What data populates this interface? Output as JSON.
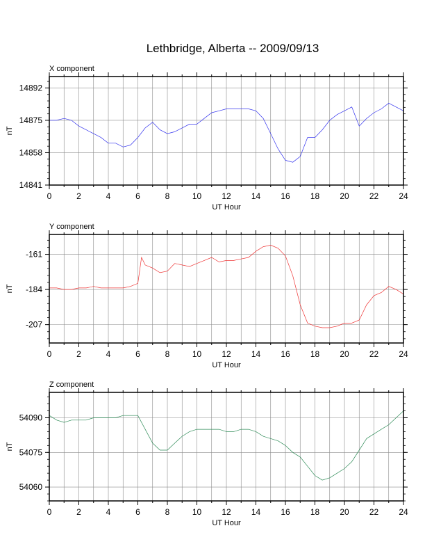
{
  "title": "Lethbridge, Alberta -- 2009/09/13",
  "chart_data": [
    {
      "type": "line",
      "title": "X component",
      "xlabel": "UT Hour",
      "ylabel": "nT",
      "xlim": [
        0,
        24
      ],
      "ylim": [
        14841,
        14898
      ],
      "xticks": [
        0,
        2,
        4,
        6,
        8,
        10,
        12,
        14,
        16,
        18,
        20,
        22,
        24
      ],
      "yticks": [
        14841,
        14858,
        14875,
        14892
      ],
      "grid": true,
      "color": "#3333ee",
      "x": [
        0,
        0.5,
        1,
        1.5,
        2,
        2.5,
        3,
        3.5,
        4,
        4.5,
        5,
        5.5,
        6,
        6.5,
        7,
        7.5,
        8,
        8.5,
        9,
        9.5,
        10,
        10.5,
        11,
        11.5,
        12,
        12.5,
        13,
        13.5,
        14,
        14.5,
        15,
        15.5,
        16,
        16.5,
        17,
        17.5,
        18,
        18.5,
        19,
        19.5,
        20,
        20.5,
        21,
        21.5,
        22,
        22.5,
        23,
        23.5,
        24
      ],
      "values": [
        14875,
        14875,
        14876,
        14875,
        14872,
        14870,
        14868,
        14866,
        14863,
        14863,
        14861,
        14862,
        14866,
        14871,
        14874,
        14870,
        14868,
        14869,
        14871,
        14873,
        14873,
        14876,
        14879,
        14880,
        14881,
        14881,
        14881,
        14881,
        14880,
        14876,
        14868,
        14860,
        14854,
        14853,
        14856,
        14866,
        14866,
        14870,
        14875,
        14878,
        14880,
        14882,
        14872,
        14876,
        14879,
        14881,
        14884,
        14882,
        14880
      ]
    },
    {
      "type": "line",
      "title": "Y component",
      "xlabel": "UT Hour",
      "ylabel": "nT",
      "xlim": [
        0,
        24
      ],
      "ylim": [
        -219,
        -148
      ],
      "xticks": [
        0,
        2,
        4,
        6,
        8,
        10,
        12,
        14,
        16,
        18,
        20,
        22,
        24
      ],
      "yticks": [
        -161,
        -184,
        -207
      ],
      "grid": true,
      "color": "#ee3333",
      "x": [
        0,
        0.5,
        1,
        1.5,
        2,
        2.5,
        3,
        3.5,
        4,
        4.5,
        5,
        5.5,
        6,
        6.25,
        6.5,
        7,
        7.5,
        8,
        8.5,
        9,
        9.5,
        10,
        10.5,
        11,
        11.5,
        12,
        12.5,
        13,
        13.5,
        14,
        14.5,
        15,
        15.5,
        16,
        16.5,
        17,
        17.5,
        18,
        18.5,
        19,
        19.5,
        20,
        20.5,
        21,
        21.5,
        22,
        22.5,
        23,
        23.5,
        24
      ],
      "values": [
        -183,
        -183,
        -184,
        -184,
        -183,
        -183,
        -182,
        -183,
        -183,
        -183,
        -183,
        -182,
        -180,
        -163,
        -168,
        -170,
        -173,
        -172,
        -167,
        -168,
        -169,
        -167,
        -165,
        -163,
        -166,
        -165,
        -165,
        -164,
        -163,
        -159,
        -156,
        -155,
        -157,
        -162,
        -175,
        -194,
        -206,
        -208,
        -209,
        -209,
        -208,
        -206,
        -206,
        -204,
        -194,
        -188,
        -186,
        -182,
        -184,
        -187
      ]
    },
    {
      "type": "line",
      "title": "Z component",
      "xlabel": "UT Hour",
      "ylabel": "nT",
      "xlim": [
        0,
        24
      ],
      "ylim": [
        54054,
        54101
      ],
      "xticks": [
        0,
        2,
        4,
        6,
        8,
        10,
        12,
        14,
        16,
        18,
        20,
        22,
        24
      ],
      "yticks": [
        54090,
        54075,
        54060
      ],
      "grid": true,
      "color": "#2e8b57",
      "x": [
        0,
        0.5,
        1,
        1.5,
        2,
        2.5,
        3,
        3.5,
        4,
        4.5,
        5,
        5.5,
        6,
        6.5,
        7,
        7.5,
        8,
        8.5,
        9,
        9.5,
        10,
        10.5,
        11,
        11.5,
        12,
        12.5,
        13,
        13.5,
        14,
        14.5,
        15,
        15.5,
        16,
        16.5,
        17,
        17.5,
        18,
        18.5,
        19,
        19.5,
        20,
        20.5,
        21,
        21.5,
        22,
        22.5,
        23,
        23.5,
        24
      ],
      "values": [
        54091,
        54089,
        54088,
        54089,
        54089,
        54089,
        54090,
        54090,
        54090,
        54090,
        54091,
        54091,
        54091,
        54085,
        54079,
        54076,
        54076,
        54079,
        54082,
        54084,
        54085,
        54085,
        54085,
        54085,
        54084,
        54084,
        54085,
        54085,
        54084,
        54082,
        54081,
        54080,
        54078,
        54075,
        54073,
        54069,
        54065,
        54063,
        54064,
        54066,
        54068,
        54071,
        54076,
        54081,
        54083,
        54085,
        54087,
        54090,
        54093
      ]
    }
  ]
}
